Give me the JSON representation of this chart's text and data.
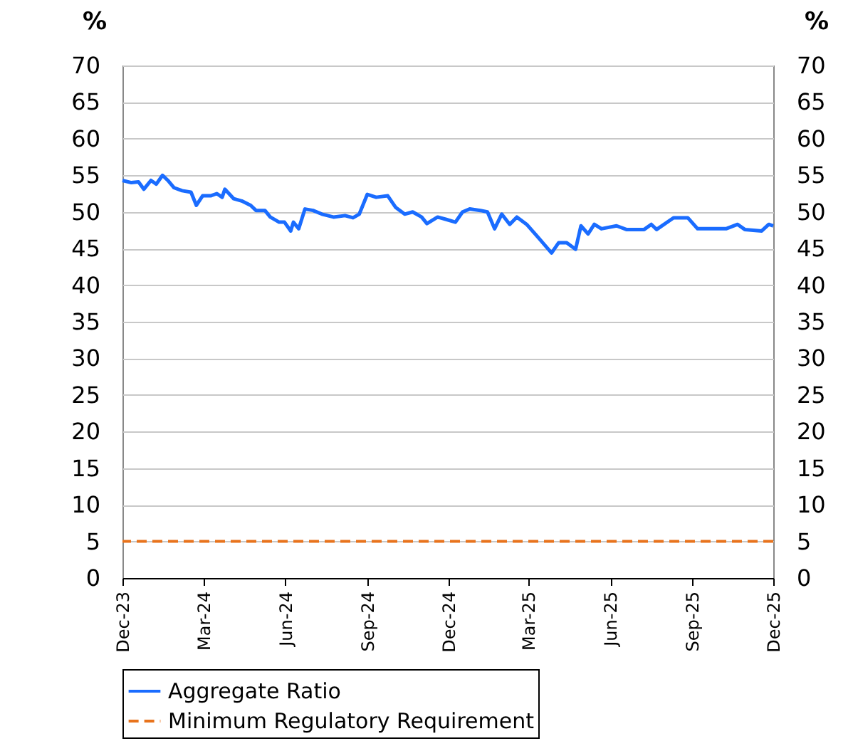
{
  "chart_data": {
    "type": "line",
    "xlim": [
      "2023-12-01",
      "2025-12-01"
    ],
    "xticks": [
      {
        "value": "2023-12-01",
        "label": "Dec-23"
      },
      {
        "value": "2024-03-01",
        "label": "Mar-24"
      },
      {
        "value": "2024-06-01",
        "label": "Jun-24"
      },
      {
        "value": "2024-09-01",
        "label": "Sep-24"
      },
      {
        "value": "2024-12-01",
        "label": "Dec-24"
      },
      {
        "value": "2025-03-01",
        "label": "Mar-25"
      },
      {
        "value": "2025-06-01",
        "label": "Jun-25"
      },
      {
        "value": "2025-09-01",
        "label": "Sep-25"
      },
      {
        "value": "2025-12-01",
        "label": "Dec-25"
      }
    ],
    "ylim": [
      0,
      70
    ],
    "yticks": [
      0,
      5,
      10,
      15,
      20,
      25,
      30,
      35,
      40,
      45,
      50,
      55,
      60,
      65,
      70
    ],
    "y2lim": [
      0,
      70
    ],
    "y2ticks": [
      0,
      5,
      10,
      15,
      20,
      25,
      30,
      35,
      40,
      45,
      50,
      55,
      60,
      65,
      70
    ],
    "ylabel": "%",
    "y2label": "%",
    "grid": "y",
    "legend": "bottom",
    "line_style": "solid",
    "series": [
      {
        "name": "Aggregate Ratio",
        "color": "#1a6cff",
        "x": [
          "2023-12-01",
          "2023-12-11",
          "2023-12-19",
          "2023-12-25",
          "2024-01-02",
          "2024-01-08",
          "2024-01-15",
          "2024-01-21",
          "2024-01-28",
          "2024-02-06",
          "2024-02-16",
          "2024-02-22",
          "2024-02-29",
          "2024-03-09",
          "2024-03-16",
          "2024-03-22",
          "2024-03-25",
          "2024-04-04",
          "2024-04-13",
          "2024-04-23",
          "2024-04-29",
          "2024-05-09",
          "2024-05-15",
          "2024-05-25",
          "2024-05-31",
          "2024-06-07",
          "2024-06-10",
          "2024-06-16",
          "2024-06-23",
          "2024-07-02",
          "2024-07-12",
          "2024-07-25",
          "2024-08-07",
          "2024-08-16",
          "2024-08-23",
          "2024-09-01",
          "2024-09-11",
          "2024-09-24",
          "2024-10-03",
          "2024-10-13",
          "2024-10-22",
          "2024-11-01",
          "2024-11-07",
          "2024-11-19",
          "2024-11-28",
          "2024-12-09",
          "2024-12-17",
          "2024-12-25",
          "2025-01-06",
          "2025-01-14",
          "2025-01-22",
          "2025-01-30",
          "2025-02-08",
          "2025-02-16",
          "2025-02-27",
          "2025-03-12",
          "2025-03-27",
          "2025-04-04",
          "2025-04-13",
          "2025-04-23",
          "2025-04-29",
          "2025-05-07",
          "2025-05-14",
          "2025-05-22",
          "2025-06-08",
          "2025-06-19",
          "2025-07-09",
          "2025-07-17",
          "2025-07-23",
          "2025-08-11",
          "2025-08-27",
          "2025-09-07",
          "2025-09-19",
          "2025-10-09",
          "2025-10-22",
          "2025-10-30",
          "2025-11-18",
          "2025-11-26",
          "2025-12-01"
        ],
        "values": [
          54.3,
          54.0,
          54.1,
          53.1,
          54.3,
          53.8,
          55.0,
          54.3,
          53.3,
          52.9,
          52.7,
          50.9,
          52.2,
          52.2,
          52.5,
          52.0,
          53.1,
          51.8,
          51.5,
          50.9,
          50.2,
          50.2,
          49.3,
          48.6,
          48.6,
          47.4,
          48.6,
          47.7,
          50.4,
          50.2,
          49.7,
          49.3,
          49.5,
          49.2,
          49.7,
          52.4,
          52.0,
          52.2,
          50.6,
          49.7,
          50.0,
          49.3,
          48.4,
          49.3,
          49.0,
          48.6,
          50.0,
          50.4,
          50.2,
          50.0,
          47.7,
          49.7,
          48.3,
          49.3,
          48.3,
          46.5,
          44.4,
          45.8,
          45.8,
          44.9,
          48.1,
          47.0,
          48.3,
          47.7,
          48.1,
          47.6,
          47.6,
          48.3,
          47.6,
          49.2,
          49.2,
          47.7,
          47.7,
          47.7,
          48.3,
          47.6,
          47.4,
          48.3,
          48.1
        ]
      }
    ],
    "ref_lines": [
      {
        "axis": "y",
        "value": 5,
        "label": "Minimum Regulatory Requirement",
        "color": "#e8731c",
        "line_style": "dashed"
      }
    ]
  }
}
